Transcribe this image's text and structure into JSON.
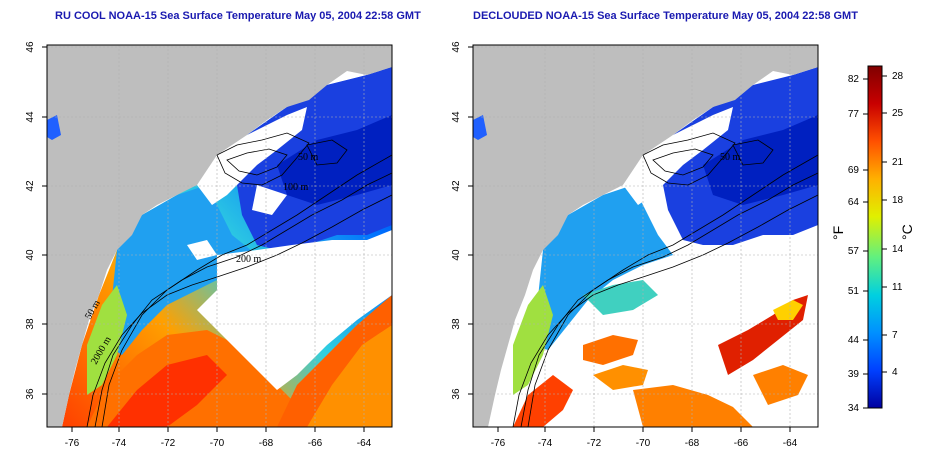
{
  "panels": [
    {
      "title": "RU COOL NOAA-15 Sea Surface Temperature May 05, 2004 22:58 GMT",
      "variant": "raw"
    },
    {
      "title": "DECLOUDED NOAA-15 Sea Surface Temperature May 05, 2004 22:58 GMT",
      "variant": "declouded"
    }
  ],
  "axes": {
    "x_ticks": [
      "-76",
      "-74",
      "-72",
      "-70",
      "-68",
      "-66",
      "-64"
    ],
    "y_ticks": [
      "46",
      "44",
      "42",
      "40",
      "38",
      "36"
    ]
  },
  "contour_labels": [
    "50 m",
    "50 m",
    "100 m",
    "200 m",
    "50 m",
    "2000 m"
  ],
  "colorbar": {
    "f_label": "°F",
    "c_label": "°C",
    "f_ticks": [
      "82",
      "77",
      "69",
      "64",
      "57",
      "51",
      "44",
      "39",
      "34"
    ],
    "c_ticks": [
      "28",
      "25",
      "21",
      "18",
      "14",
      "11",
      "7",
      "4"
    ],
    "colors": [
      "#0000a0",
      "#0040ff",
      "#0090ff",
      "#00d0e0",
      "#60f080",
      "#e0f000",
      "#ffb000",
      "#ff5000",
      "#c80000",
      "#800000"
    ]
  },
  "colors": {
    "land": "#bebebe",
    "no_data": "#ffffff",
    "title": "#1a1ab0"
  }
}
